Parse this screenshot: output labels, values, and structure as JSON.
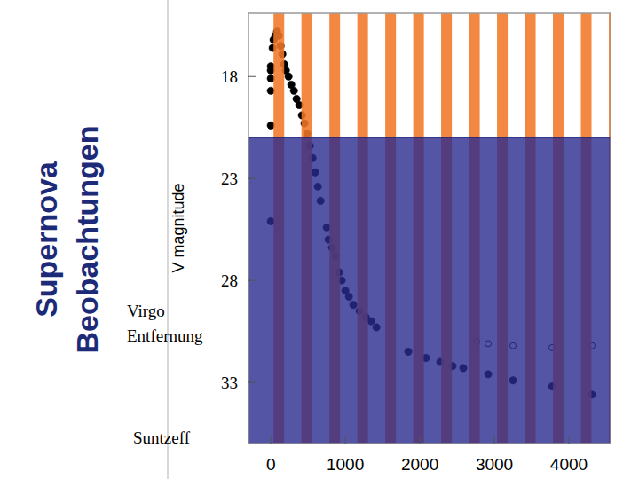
{
  "chart_data": {
    "type": "scatter",
    "title": "Supernova Beobachtungen",
    "ylabel": "V magnitude",
    "annotation": "Virgo Entfernung",
    "source": "Suntzeff",
    "xlim": [
      -300,
      4560
    ],
    "xticks": [
      0,
      1000,
      2000,
      3000,
      4000
    ],
    "ylim": [
      36,
      14.9
    ],
    "yticks": [
      18,
      23,
      28,
      33
    ],
    "grid": false,
    "detection_limit": 21,
    "observing_windows": [
      [
        36,
        179
      ],
      [
        411,
        554
      ],
      [
        786,
        929
      ],
      [
        1161,
        1304
      ],
      [
        1536,
        1679
      ],
      [
        1911,
        2054
      ],
      [
        2286,
        2429
      ],
      [
        2661,
        2804
      ],
      [
        3036,
        3179
      ],
      [
        3411,
        3554
      ],
      [
        3786,
        3929
      ],
      [
        4161,
        4304
      ],
      [
        4536,
        4679
      ]
    ],
    "series": [
      {
        "color": "#000000",
        "marker": "circle",
        "x": [
          0,
          0,
          0,
          0,
          0,
          0,
          24,
          36,
          60,
          83,
          107,
          131,
          155,
          179,
          202,
          238,
          274,
          310,
          345,
          381,
          417,
          452,
          488,
          524,
          560,
          595,
          631,
          667,
          750,
          774,
          821,
          869,
          917,
          952,
          1000,
          1048,
          1107,
          1190,
          1274,
          1345,
          1417,
          1845,
          2083,
          2274,
          2440,
          2583,
          2917,
          3250,
          3774,
          4310
        ],
        "values": [
          17.5,
          17.7,
          18.1,
          18.7,
          20.4,
          25.1,
          16.6,
          16.2,
          16.0,
          15.8,
          16.0,
          16.5,
          16.9,
          17.4,
          17.7,
          18.0,
          18.4,
          18.7,
          19.1,
          19.4,
          19.9,
          20.3,
          20.8,
          21.4,
          22.0,
          22.7,
          23.4,
          24.1,
          25.4,
          26.0,
          26.4,
          26.8,
          27.6,
          28.0,
          28.5,
          28.8,
          29.2,
          29.5,
          29.8,
          30.0,
          30.3,
          31.5,
          31.8,
          32.0,
          32.2,
          32.3,
          32.6,
          32.9,
          33.2,
          33.6
        ]
      },
      {
        "color": "#000000",
        "marker": "open_circle",
        "x": [
          2762,
          2917,
          3250,
          3774,
          4310
        ],
        "values": [
          31.0,
          31.1,
          31.2,
          31.3,
          31.2
        ]
      }
    ]
  }
}
